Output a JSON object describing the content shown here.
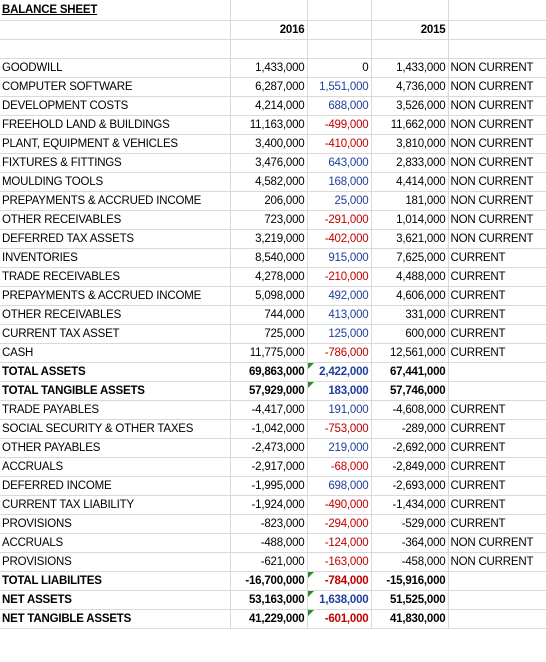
{
  "title": "BALANCE SHEET",
  "years": {
    "current": "2016",
    "previous": "2015"
  },
  "rows": [
    {
      "label": "GOODWILL",
      "y2016": "1,433,000",
      "change": "0",
      "change_sign": "zero",
      "y2015": "1,433,000",
      "cls": "NON CURRENT"
    },
    {
      "label": "COMPUTER SOFTWARE",
      "y2016": "6,287,000",
      "change": "1,551,000",
      "change_sign": "pos",
      "y2015": "4,736,000",
      "cls": "NON CURRENT"
    },
    {
      "label": "DEVELOPMENT COSTS",
      "y2016": "4,214,000",
      "change": "688,000",
      "change_sign": "pos",
      "y2015": "3,526,000",
      "cls": "NON CURRENT"
    },
    {
      "label": "FREEHOLD LAND & BUILDINGS",
      "y2016": "11,163,000",
      "change": "-499,000",
      "change_sign": "neg",
      "y2015": "11,662,000",
      "cls": "NON CURRENT"
    },
    {
      "label": "PLANT, EQUIPMENT & VEHICLES",
      "y2016": "3,400,000",
      "change": "-410,000",
      "change_sign": "neg",
      "y2015": "3,810,000",
      "cls": "NON CURRENT"
    },
    {
      "label": "FIXTURES & FITTINGS",
      "y2016": "3,476,000",
      "change": "643,000",
      "change_sign": "pos",
      "y2015": "2,833,000",
      "cls": "NON CURRENT"
    },
    {
      "label": "MOULDING TOOLS",
      "y2016": "4,582,000",
      "change": "168,000",
      "change_sign": "pos",
      "y2015": "4,414,000",
      "cls": "NON CURRENT"
    },
    {
      "label": "PREPAYMENTS & ACCRUED INCOME",
      "y2016": "206,000",
      "change": "25,000",
      "change_sign": "pos",
      "y2015": "181,000",
      "cls": "NON CURRENT"
    },
    {
      "label": "OTHER RECEIVABLES",
      "y2016": "723,000",
      "change": "-291,000",
      "change_sign": "neg",
      "y2015": "1,014,000",
      "cls": "NON CURRENT"
    },
    {
      "label": "DEFERRED TAX ASSETS",
      "y2016": "3,219,000",
      "change": "-402,000",
      "change_sign": "neg",
      "y2015": "3,621,000",
      "cls": "NON CURRENT"
    },
    {
      "label": "INVENTORIES",
      "y2016": "8,540,000",
      "change": "915,000",
      "change_sign": "pos",
      "y2015": "7,625,000",
      "cls": "CURRENT"
    },
    {
      "label": "TRADE RECEIVABLES",
      "y2016": "4,278,000",
      "change": "-210,000",
      "change_sign": "neg",
      "y2015": "4,488,000",
      "cls": "CURRENT"
    },
    {
      "label": "PREPAYMENTS & ACCRUED INCOME",
      "y2016": "5,098,000",
      "change": "492,000",
      "change_sign": "pos",
      "y2015": "4,606,000",
      "cls": "CURRENT"
    },
    {
      "label": "OTHER RECEIVABLES",
      "y2016": "744,000",
      "change": "413,000",
      "change_sign": "pos",
      "y2015": "331,000",
      "cls": "CURRENT"
    },
    {
      "label": "CURRENT TAX ASSET",
      "y2016": "725,000",
      "change": "125,000",
      "change_sign": "pos",
      "y2015": "600,000",
      "cls": "CURRENT"
    },
    {
      "label": "CASH",
      "y2016": "11,775,000",
      "change": "-786,000",
      "change_sign": "neg",
      "y2015": "12,561,000",
      "cls": "CURRENT"
    },
    {
      "label": "TOTAL ASSETS",
      "y2016": "69,863,000",
      "change": "2,422,000",
      "change_sign": "pos",
      "y2015": "67,441,000",
      "cls": "",
      "bold": true,
      "flag": true
    },
    {
      "label": "TOTAL TANGIBLE ASSETS",
      "y2016": "57,929,000",
      "change": "183,000",
      "change_sign": "pos",
      "y2015": "57,746,000",
      "cls": "",
      "bold": true,
      "flag": true
    },
    {
      "label": "TRADE PAYABLES",
      "y2016": "-4,417,000",
      "change": "191,000",
      "change_sign": "pos",
      "y2015": "-4,608,000",
      "cls": "CURRENT"
    },
    {
      "label": "SOCIAL SECURITY & OTHER TAXES",
      "y2016": "-1,042,000",
      "change": "-753,000",
      "change_sign": "neg",
      "y2015": "-289,000",
      "cls": "CURRENT"
    },
    {
      "label": "OTHER PAYABLES",
      "y2016": "-2,473,000",
      "change": "219,000",
      "change_sign": "pos",
      "y2015": "-2,692,000",
      "cls": "CURRENT"
    },
    {
      "label": "ACCRUALS",
      "y2016": "-2,917,000",
      "change": "-68,000",
      "change_sign": "neg",
      "y2015": "-2,849,000",
      "cls": "CURRENT"
    },
    {
      "label": "DEFERRED INCOME",
      "y2016": "-1,995,000",
      "change": "698,000",
      "change_sign": "pos",
      "y2015": "-2,693,000",
      "cls": "CURRENT"
    },
    {
      "label": "CURRENT TAX LIABILITY",
      "y2016": "-1,924,000",
      "change": "-490,000",
      "change_sign": "neg",
      "y2015": "-1,434,000",
      "cls": "CURRENT"
    },
    {
      "label": "PROVISIONS",
      "y2016": "-823,000",
      "change": "-294,000",
      "change_sign": "neg",
      "y2015": "-529,000",
      "cls": "CURRENT"
    },
    {
      "label": "ACCRUALS",
      "y2016": "-488,000",
      "change": "-124,000",
      "change_sign": "neg",
      "y2015": "-364,000",
      "cls": "NON CURRENT"
    },
    {
      "label": "PROVISIONS",
      "y2016": "-621,000",
      "change": "-163,000",
      "change_sign": "neg",
      "y2015": "-458,000",
      "cls": "NON CURRENT"
    },
    {
      "label": "TOTAL LIABILITES",
      "y2016": "-16,700,000",
      "change": "-784,000",
      "change_sign": "neg",
      "y2015": "-15,916,000",
      "cls": "",
      "bold": true,
      "flag": true
    },
    {
      "label": "NET ASSETS",
      "y2016": "53,163,000",
      "change": "1,638,000",
      "change_sign": "pos",
      "y2015": "51,525,000",
      "cls": "",
      "bold": true,
      "flag": true
    },
    {
      "label": "NET TANGIBLE ASSETS",
      "y2016": "41,229,000",
      "change": "-601,000",
      "change_sign": "neg",
      "y2015": "41,830,000",
      "cls": "",
      "bold": true,
      "flag": true
    }
  ],
  "colors": {
    "positive_change": "#1f3f9f",
    "negative_change": "#c00000",
    "error_flag": "#2a8a2a",
    "grid": "#d9d9d9"
  }
}
